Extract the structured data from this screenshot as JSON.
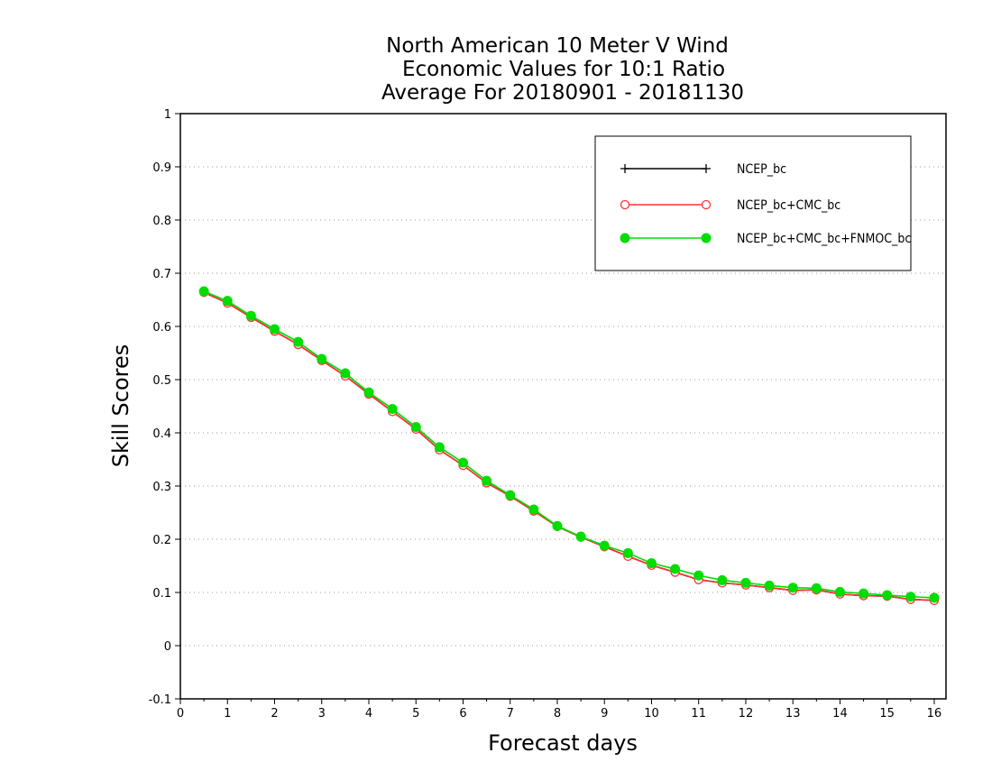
{
  "chart_data": {
    "type": "line",
    "title": [
      "North American 10 Meter V Wind",
      "Economic Values for 10:1 Ratio",
      "Average For 20180901 - 20181130"
    ],
    "xlabel": "Forecast days",
    "ylabel": "Skill Scores",
    "xlim": [
      0,
      16.25
    ],
    "ylim": [
      -0.1,
      1
    ],
    "xticks": [
      "0",
      "1",
      "2",
      "3",
      "4",
      "5",
      "6",
      "7",
      "8",
      "9",
      "10",
      "11",
      "12",
      "13",
      "14",
      "15",
      "16"
    ],
    "yticks": [
      "1",
      "0.9",
      "0.8",
      "0.7",
      "0.6",
      "0.5",
      "0.4",
      "0.3",
      "0.2",
      "0.1",
      "0",
      "-0.1"
    ],
    "ytick_values": [
      1,
      0.9,
      0.8,
      0.7,
      0.6,
      0.5,
      0.4,
      0.3,
      0.2,
      0.1,
      0,
      -0.1
    ],
    "grid": "horizontal dotted",
    "legend_position": "top-right",
    "x": [
      0.5,
      1,
      1.5,
      2,
      2.5,
      3,
      3.5,
      4,
      4.5,
      5,
      5.5,
      6,
      6.5,
      7,
      7.5,
      8,
      8.5,
      9,
      9.5,
      10,
      10.5,
      11,
      11.5,
      12,
      12.5,
      13,
      13.5,
      14,
      14.5,
      15,
      15.5,
      16
    ],
    "series": [
      {
        "name": "NCEP_bc",
        "color": "#000000",
        "marker": "plus",
        "values": [
          0.664,
          0.644,
          0.617,
          0.591,
          0.566,
          0.536,
          0.507,
          0.473,
          0.44,
          0.407,
          0.368,
          0.339,
          0.306,
          0.281,
          0.253,
          0.224,
          0.204,
          0.186,
          0.168,
          0.151,
          0.138,
          0.124,
          0.118,
          0.114,
          0.109,
          0.104,
          0.105,
          0.097,
          0.094,
          0.093,
          0.087,
          0.085
        ]
      },
      {
        "name": "NCEP_bc+CMC_bc",
        "color": "#ff3333",
        "marker": "open-circle",
        "values": [
          0.664,
          0.644,
          0.617,
          0.591,
          0.566,
          0.536,
          0.507,
          0.473,
          0.44,
          0.407,
          0.368,
          0.339,
          0.306,
          0.281,
          0.253,
          0.224,
          0.204,
          0.186,
          0.168,
          0.151,
          0.138,
          0.124,
          0.118,
          0.114,
          0.109,
          0.104,
          0.105,
          0.097,
          0.094,
          0.093,
          0.087,
          0.085
        ]
      },
      {
        "name": "NCEP_bc+CMC_bc+FNMOC_bc",
        "color": "#00dd00",
        "marker": "filled-circle",
        "values": [
          0.666,
          0.648,
          0.62,
          0.595,
          0.571,
          0.539,
          0.512,
          0.476,
          0.445,
          0.411,
          0.373,
          0.344,
          0.31,
          0.283,
          0.256,
          0.225,
          0.205,
          0.188,
          0.174,
          0.155,
          0.144,
          0.132,
          0.123,
          0.118,
          0.113,
          0.109,
          0.108,
          0.101,
          0.098,
          0.095,
          0.092,
          0.09
        ]
      }
    ]
  }
}
